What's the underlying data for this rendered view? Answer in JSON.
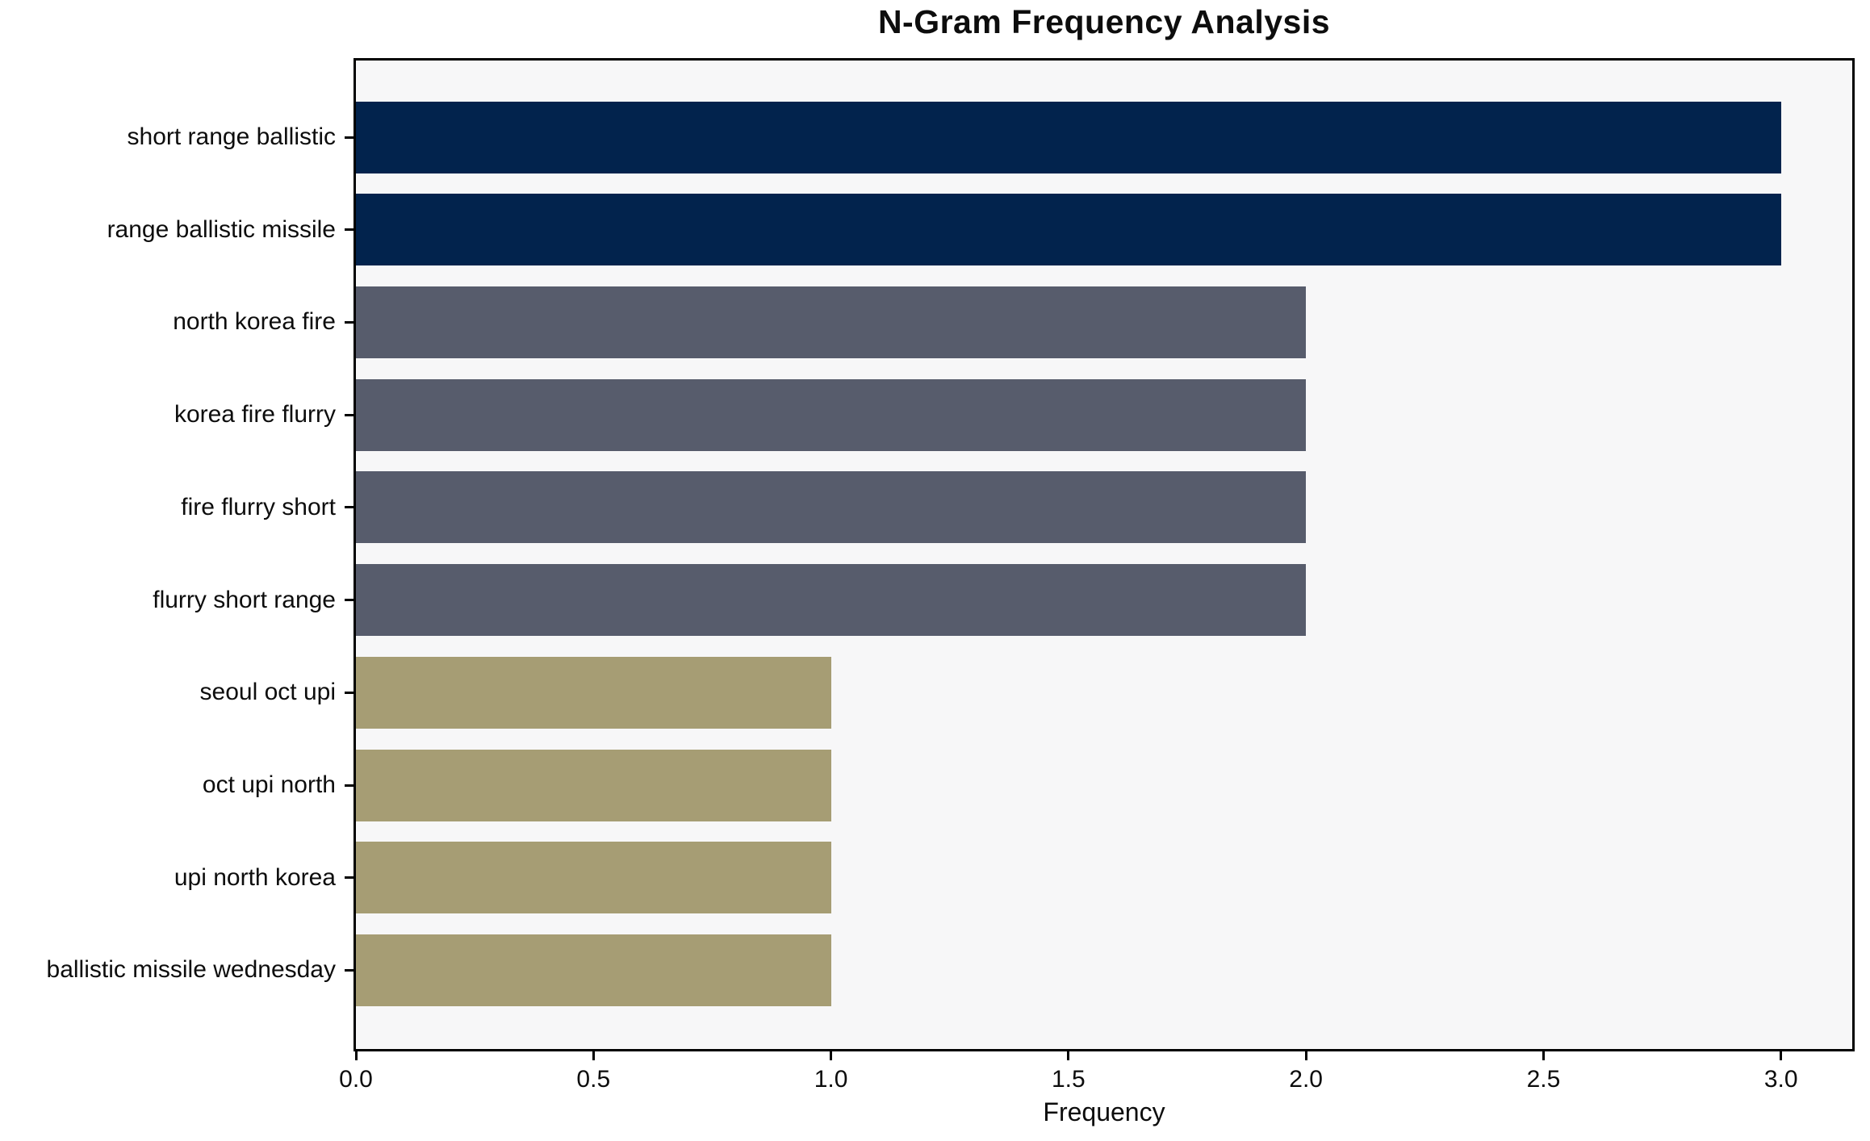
{
  "chart_data": {
    "type": "bar",
    "orientation": "horizontal",
    "title": "N-Gram Frequency Analysis",
    "xlabel": "Frequency",
    "ylabel": "",
    "categories": [
      "short range ballistic",
      "range ballistic missile",
      "north korea fire",
      "korea fire flurry",
      "fire flurry short",
      "flurry short range",
      "seoul oct upi",
      "oct upi north",
      "upi north korea",
      "ballistic missile wednesday"
    ],
    "values": [
      3,
      3,
      2,
      2,
      2,
      2,
      1,
      1,
      1,
      1
    ],
    "bar_colors": [
      "#02234D",
      "#02234D",
      "#575C6C",
      "#575C6C",
      "#575C6C",
      "#575C6C",
      "#A69D74",
      "#A69D74",
      "#A69D74",
      "#A69D74"
    ],
    "x_ticks": [
      "0.0",
      "0.5",
      "1.0",
      "1.5",
      "2.0",
      "2.5",
      "3.0"
    ],
    "x_tick_values": [
      0,
      0.5,
      1,
      1.5,
      2,
      2.5,
      3
    ],
    "xlim": [
      0,
      3.15
    ],
    "grid": false,
    "legend": null,
    "colors": {
      "frequency_3": "#02234D",
      "frequency_2": "#575C6C",
      "frequency_1": "#A69D74",
      "plot_background": "#F7F7F8",
      "figure_background": "#FFFFFF",
      "axis_spine": "#000000",
      "text": "#0D0D0D"
    }
  }
}
